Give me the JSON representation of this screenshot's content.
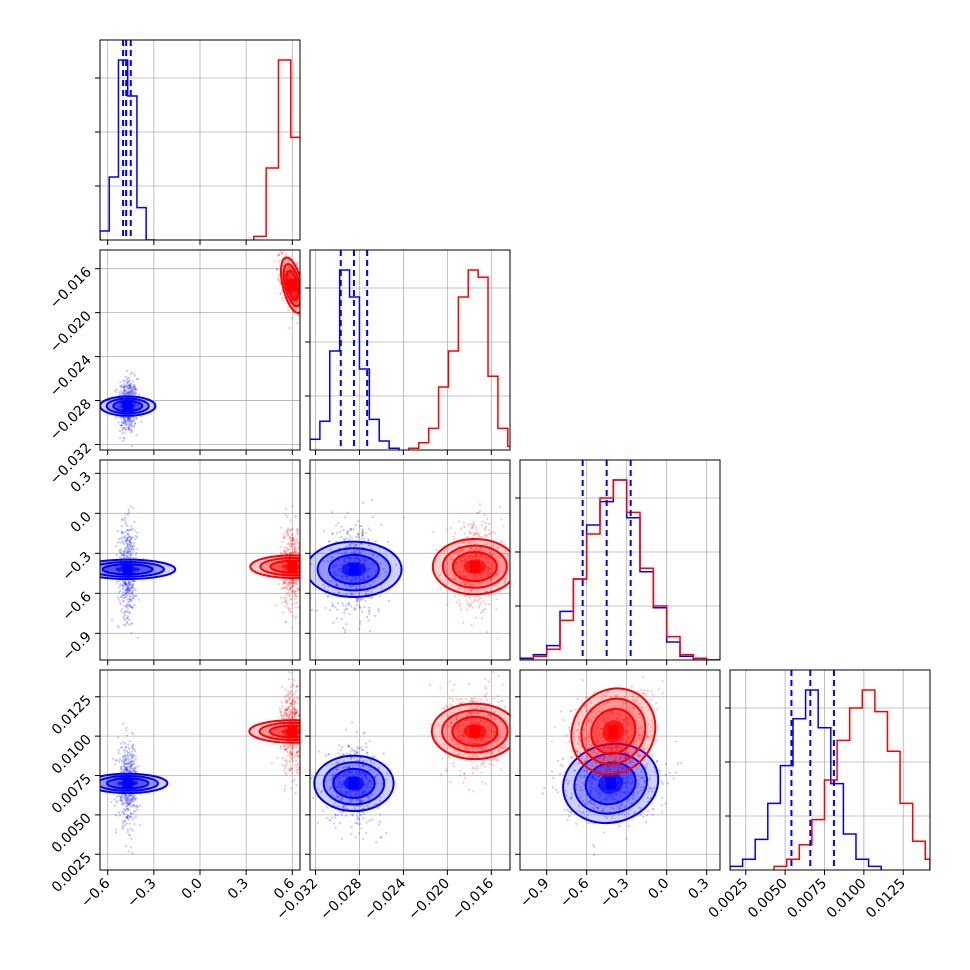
{
  "chart_data": {
    "type": "corner",
    "grid": true,
    "colors": {
      "blue": "#0000ff",
      "red": "#ff0000",
      "grid": "#b0b0b0"
    },
    "params": [
      {
        "range": [
          -0.65,
          0.65
        ],
        "ticks": [
          -0.6,
          -0.3,
          0.0,
          0.3,
          0.6
        ],
        "tick_labels": [
          "−0.6",
          "−0.3",
          "0.0",
          "0.3",
          "0.6"
        ]
      },
      {
        "range": [
          -0.0325,
          -0.0143
        ],
        "ticks": [
          -0.032,
          -0.028,
          -0.024,
          -0.02,
          -0.016
        ],
        "tick_labels": [
          "−0.032",
          "−0.028",
          "−0.024",
          "−0.020",
          "−0.016"
        ]
      },
      {
        "range": [
          -1.1,
          0.4
        ],
        "ticks": [
          -0.9,
          -0.6,
          -0.3,
          0.0,
          0.3
        ],
        "tick_labels": [
          "−0.9",
          "−0.6",
          "−0.3",
          "0.0",
          "0.3"
        ]
      },
      {
        "range": [
          0.0015,
          0.0142
        ],
        "ticks": [
          0.0025,
          0.005,
          0.0075,
          0.01,
          0.0125
        ],
        "tick_labels": [
          "0.0025",
          "0.0050",
          "0.0075",
          "0.0100",
          "0.0125"
        ]
      }
    ],
    "series": [
      {
        "color_key": "blue",
        "mean": [
          -0.47,
          -0.0285,
          -0.42,
          0.007
        ],
        "std": [
          0.03,
          0.0012,
          0.17,
          0.0012
        ],
        "quantiles": [
          [
            -0.5,
            -0.48,
            -0.45
          ],
          [
            -0.0297,
            -0.0285,
            -0.0273
          ],
          [
            -0.63,
            -0.45,
            -0.27
          ],
          [
            0.0054,
            0.0066,
            0.0081
          ]
        ],
        "corr": {
          "0-1": 0.0,
          "0-2": 0.0,
          "0-3": 0.0,
          "1-2": 0.0,
          "1-3": 0.0,
          "2-3": 0.1
        }
      },
      {
        "color_key": "red",
        "mean": [
          0.6,
          -0.0175,
          -0.4,
          0.0103
        ],
        "std": [
          0.035,
          0.0012,
          0.15,
          0.0013
        ],
        "quantiles": null,
        "corr": {
          "0-1": -0.5,
          "0-2": 0.0,
          "0-3": 0.0,
          "1-2": 0.0,
          "1-3": 0.0,
          "2-3": 0.1
        }
      }
    ],
    "histograms": {
      "blue": [
        {
          "edges": [
            -0.65,
            -0.59,
            -0.53,
            -0.47,
            -0.41,
            -0.35,
            -0.29
          ],
          "counts": [
            0.05,
            0.35,
            1.0,
            0.8,
            0.18,
            0.0
          ]
        },
        {
          "edges": [
            -0.0325,
            -0.0316,
            -0.0307,
            -0.0298,
            -0.0289,
            -0.028,
            -0.0271,
            -0.0262,
            -0.0253,
            -0.0244
          ],
          "counts": [
            0.06,
            0.16,
            0.55,
            1.0,
            0.85,
            0.45,
            0.17,
            0.05,
            0.01
          ]
        },
        {
          "edges": [
            -1.1,
            -1.0,
            -0.9,
            -0.8,
            -0.7,
            -0.6,
            -0.5,
            -0.4,
            -0.3,
            -0.2,
            -0.1,
            0.0,
            0.1,
            0.2,
            0.3,
            0.4
          ],
          "counts": [
            0.01,
            0.03,
            0.08,
            0.27,
            0.45,
            0.75,
            0.88,
            1.0,
            0.79,
            0.49,
            0.29,
            0.1,
            0.02,
            0.0,
            0.0
          ]
        },
        {
          "edges": [
            0.0015,
            0.0023,
            0.0031,
            0.0039,
            0.0047,
            0.0055,
            0.0063,
            0.0071,
            0.0079,
            0.0087,
            0.0095,
            0.0103,
            0.0111
          ],
          "counts": [
            0.02,
            0.06,
            0.17,
            0.37,
            0.58,
            0.84,
            1.0,
            0.79,
            0.48,
            0.2,
            0.06,
            0.02
          ]
        }
      ],
      "red": [
        {
          "edges": [
            0.35,
            0.43,
            0.51,
            0.59,
            0.67,
            0.75
          ],
          "counts": [
            0.02,
            0.4,
            1.0,
            0.57,
            0.03
          ]
        },
        {
          "edges": [
            -0.0235,
            -0.0226,
            -0.0217,
            -0.0208,
            -0.0199,
            -0.019,
            -0.0181,
            -0.0172,
            -0.0163,
            -0.0154,
            -0.0145,
            -0.0136
          ],
          "counts": [
            0.01,
            0.04,
            0.12,
            0.35,
            0.55,
            0.85,
            1.0,
            0.96,
            0.41,
            0.12,
            0.02
          ]
        },
        {
          "edges": [
            -1.1,
            -1.0,
            -0.9,
            -0.8,
            -0.7,
            -0.6,
            -0.5,
            -0.4,
            -0.3,
            -0.2,
            -0.1,
            0.0,
            0.1,
            0.2,
            0.3,
            0.4
          ],
          "counts": [
            0.0,
            0.02,
            0.06,
            0.22,
            0.45,
            0.7,
            0.9,
            1.0,
            0.82,
            0.51,
            0.3,
            0.13,
            0.03,
            0.01,
            0.0
          ]
        },
        {
          "edges": [
            0.0043,
            0.0051,
            0.0059,
            0.0067,
            0.0075,
            0.0083,
            0.0091,
            0.0099,
            0.0107,
            0.0115,
            0.0123,
            0.0131,
            0.0139,
            0.0142
          ],
          "counts": [
            0.02,
            0.06,
            0.14,
            0.28,
            0.5,
            0.72,
            0.9,
            1.0,
            0.88,
            0.66,
            0.37,
            0.16,
            0.06
          ]
        }
      ]
    }
  }
}
